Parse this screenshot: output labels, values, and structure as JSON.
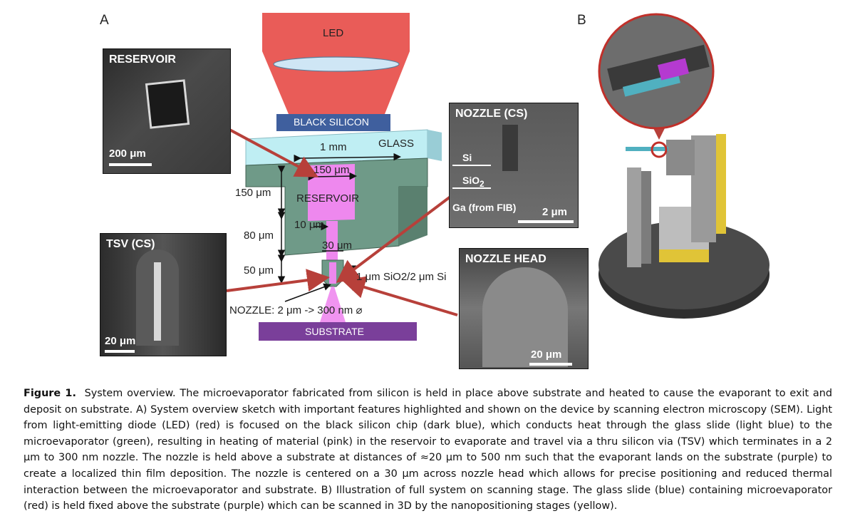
{
  "panel_a_label": "A",
  "panel_b_label": "B",
  "sketch": {
    "led": "LED",
    "black_silicon": "BLACK SILICON",
    "glass": "GLASS",
    "dim_1mm": "1 mm",
    "dim_150um_width": "150 μm",
    "reservoir": "RESERVOIR",
    "dim_150um": "150 μm",
    "dim_80um": "80 μm",
    "dim_10um": "10 μm",
    "dim_30um": "30 μm",
    "dim_50um": "50 μm",
    "layer_note": "1 μm SiO2/2 μm Si",
    "nozzle_note": "NOZZLE: 2 μm -> 300 nm ⌀",
    "substrate": "SUBSTRATE"
  },
  "sem_reservoir": {
    "title": "RESERVOIR",
    "scale": "200 μm"
  },
  "sem_tsv": {
    "title": "TSV (CS)",
    "scale": "20 μm"
  },
  "sem_nozzle_cs": {
    "title": "NOZZLE (CS)",
    "si": "Si",
    "sio2": "SiO",
    "sio2_sub": "2",
    "ga": "Ga (from FIB)",
    "scale": "2 μm"
  },
  "sem_nozzle_head": {
    "title": "NOZZLE HEAD",
    "scale": "20 μm"
  },
  "caption": {
    "label": "Figure 1.",
    "text": "System overview. The microevaporator fabricated from silicon is held in place above substrate and heated to cause the evaporant to exit and deposit on substrate. A) System overview sketch with important features highlighted and shown on the device by scanning electron microscopy (SEM). Light from light-emitting diode (LED) (red) is focused on the black silicon chip (dark blue), which conducts heat through the glass slide (light blue) to the microevaporator (green), resulting in heating of material (pink) in the reservoir to evaporate and travel via a thru silicon via (TSV) which terminates in a 2 μm to 300 nm nozzle. The nozzle is held above a substrate at distances of ≈20 μm to 500 nm such that the evaporant lands on the substrate (purple) to create a localized thin film deposition. The nozzle is centered on a 30 μm across nozzle head which allows for precise positioning and reduced thermal interaction between the microevaporator and substrate. B) Illustration of full system on scanning stage. The glass slide (blue) containing microevaporator (red) is held fixed above the substrate (purple) which can be scanned in 3D by the nanopositioning stages (yellow)."
  },
  "colors": {
    "led": "#e8534f",
    "black_silicon": "#3f5f9e",
    "glass": "#bfeef3",
    "silicon": "#6f9a88",
    "material": "#ee88ee",
    "substrate": "#7a3f9a",
    "arrow": "#b7403a",
    "stage_yellow": "#e0c437"
  }
}
